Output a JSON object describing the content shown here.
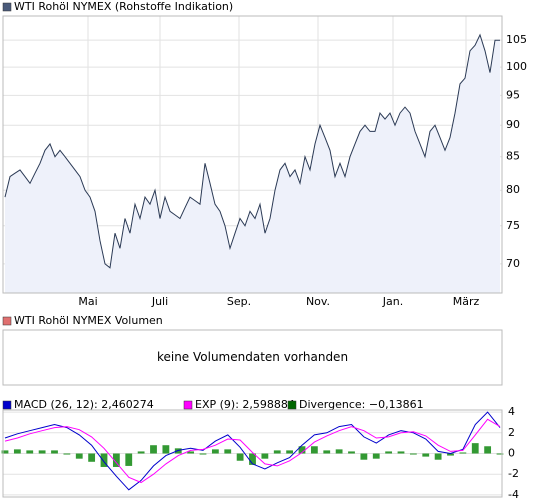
{
  "chart_data": [
    {
      "type": "line",
      "title": "WTI Rohöl NYMEX (Rohstoffe Indikation)",
      "color": "#2b3a55",
      "area_color": "#eef1fa",
      "legend_color": "#4a5a7a",
      "log_scale": true,
      "grid": true,
      "values": [
        79,
        82,
        82.5,
        83,
        82,
        81,
        82.5,
        84,
        86,
        87,
        85,
        86,
        85,
        84,
        83,
        82,
        80,
        79,
        77,
        73,
        70,
        69.5,
        74,
        72,
        76,
        74,
        78,
        76,
        79,
        78,
        80,
        76,
        79,
        77,
        76.5,
        76,
        77.5,
        79,
        78.5,
        78,
        84,
        81,
        78,
        77,
        75,
        72,
        74,
        76,
        75,
        77,
        76,
        78,
        74,
        76,
        80,
        83,
        84,
        82,
        83,
        81,
        85,
        83,
        87,
        90,
        88,
        86,
        82,
        84,
        82,
        85,
        87,
        89,
        90,
        89,
        89,
        92,
        91,
        92,
        90,
        92,
        93,
        92,
        89,
        87,
        85,
        89,
        90,
        88,
        86,
        88,
        92,
        97,
        98,
        103,
        104,
        106,
        103,
        99,
        105,
        105
      ],
      "xlim": [
        0,
        99
      ],
      "xticks": [
        {
          "value": 16.6,
          "label": "Mai"
        },
        {
          "value": 31,
          "label": "Juli"
        },
        {
          "value": 46.8,
          "label": "Sep."
        },
        {
          "value": 62.6,
          "label": "Nov."
        },
        {
          "value": 77.6,
          "label": "Jan."
        },
        {
          "value": 92.2,
          "label": "März"
        }
      ],
      "ylim": [
        66.4,
        109.7
      ],
      "yticks": [
        70,
        75,
        80,
        85,
        90,
        95,
        100,
        105
      ]
    },
    {
      "type": "bar",
      "title": "WTI Rohöl NYMEX Volumen",
      "legend_color": "#e07070",
      "annotation": "keine Volumendaten vorhanden"
    },
    {
      "type": "macd",
      "grid": true,
      "xlim": [
        0,
        40
      ],
      "ylim": [
        -4.2,
        4.2
      ],
      "yticks": [
        -4,
        -2,
        0,
        2,
        4
      ],
      "series": [
        {
          "name": "MACD (26, 12): 2,460274",
          "color": "#0000cc",
          "values": [
            1.5,
            1.9,
            2.2,
            2.5,
            2.8,
            2.5,
            1.8,
            0.8,
            -0.8,
            -2.2,
            -3.5,
            -2.6,
            -1.2,
            -0.2,
            0.3,
            0.5,
            0.3,
            1.2,
            1.8,
            0.6,
            -1.0,
            -1.5,
            -0.9,
            -0.4,
            0.8,
            1.8,
            2.0,
            2.6,
            2.8,
            1.6,
            1.0,
            1.8,
            2.2,
            2.0,
            1.4,
            0.2,
            0.0,
            0.4,
            2.8,
            4.0,
            2.5
          ]
        },
        {
          "name": "EXP (9): 2,598884",
          "color": "#ff00ff",
          "values": [
            1.2,
            1.5,
            1.9,
            2.2,
            2.5,
            2.6,
            2.3,
            1.6,
            0.5,
            -0.9,
            -2.3,
            -2.8,
            -2.0,
            -1.0,
            -0.2,
            0.3,
            0.4,
            0.8,
            1.4,
            1.3,
            0.1,
            -1.0,
            -1.2,
            -0.7,
            0.1,
            1.1,
            1.7,
            2.2,
            2.6,
            2.2,
            1.5,
            1.6,
            2.0,
            2.1,
            1.7,
            0.8,
            0.2,
            0.3,
            1.8,
            3.3,
            2.6
          ]
        },
        {
          "name": "Divergence: −0,13861",
          "color": "#006600",
          "bar_color": "#339933",
          "bar": true,
          "values": [
            0.3,
            0.4,
            0.3,
            0.3,
            0.3,
            -0.1,
            -0.5,
            -0.8,
            -1.3,
            -1.3,
            -1.2,
            0.2,
            0.8,
            0.8,
            0.5,
            0.2,
            -0.1,
            0.4,
            0.4,
            -0.7,
            -1.1,
            -0.5,
            0.3,
            0.3,
            0.7,
            0.7,
            0.3,
            0.4,
            0.2,
            -0.6,
            -0.5,
            0.2,
            0.2,
            -0.1,
            -0.3,
            -0.6,
            -0.2,
            0.1,
            1.0,
            0.7,
            -0.1
          ]
        }
      ]
    }
  ]
}
